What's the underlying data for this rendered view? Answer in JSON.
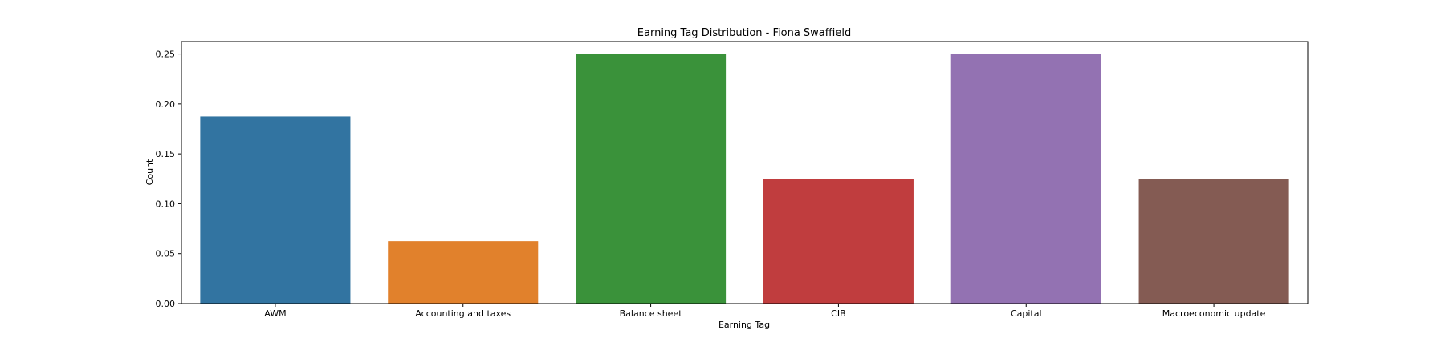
{
  "chart_data": {
    "type": "bar",
    "title": "Earning Tag Distribution - Fiona Swaffield",
    "xlabel": "Earning Tag",
    "ylabel": "Count",
    "categories": [
      "AWM",
      "Accounting and taxes",
      "Balance sheet",
      "CIB",
      "Capital",
      "Macroeconomic update"
    ],
    "values": [
      0.1875,
      0.0625,
      0.25,
      0.125,
      0.25,
      0.125
    ],
    "colors": [
      "#3274a1",
      "#e1812c",
      "#3a923a",
      "#c03d3e",
      "#9372b2",
      "#845b53"
    ],
    "ylim": [
      0,
      0.2625
    ],
    "yticks": [
      0.0,
      0.05,
      0.1,
      0.15,
      0.2,
      0.25
    ],
    "ytick_labels": [
      "0.00",
      "0.05",
      "0.10",
      "0.15",
      "0.20",
      "0.25"
    ],
    "grid": false,
    "legend": "none"
  }
}
